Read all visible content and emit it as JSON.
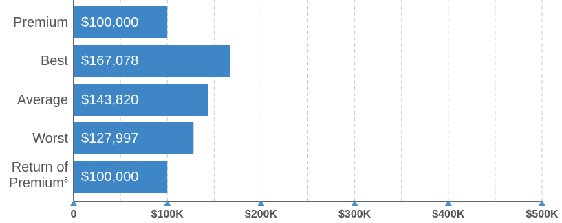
{
  "chart_data": {
    "type": "bar",
    "orientation": "horizontal",
    "categories": [
      "Premium",
      "Best",
      "Average",
      "Worst",
      "Return of Premium"
    ],
    "category_superscripts": [
      "",
      "",
      "",
      "",
      "3"
    ],
    "values": [
      100000,
      167078,
      143820,
      127997,
      100000
    ],
    "data_labels": [
      "$100,000",
      "$167,078",
      "$143,820",
      "$127,997",
      "$100,000"
    ],
    "xlim": [
      0,
      500000
    ],
    "x_ticks": [
      0,
      100000,
      200000,
      300000,
      400000,
      500000
    ],
    "x_tick_labels": [
      "0",
      "$100K",
      "$200K",
      "$300K",
      "$400K",
      "$500K"
    ],
    "grid": "vertical dashed",
    "title": "",
    "xlabel": "",
    "ylabel": ""
  },
  "colors": {
    "bar": "#3f86c6",
    "grid": "#c8c8c8",
    "axis": "#333333",
    "tick_marker": "#4a90cf",
    "text": "#555555"
  }
}
